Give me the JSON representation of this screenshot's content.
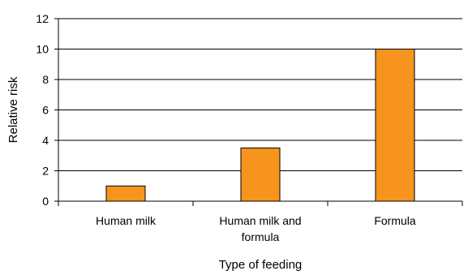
{
  "chart_data": {
    "type": "bar",
    "title": "",
    "xlabel": "Type of feeding",
    "ylabel": "Relative risk",
    "categories": [
      [
        "Human milk"
      ],
      [
        "Human milk and",
        "formula"
      ],
      [
        "Formula"
      ]
    ],
    "values": [
      1,
      3.5,
      10
    ],
    "ylim": [
      0,
      12
    ],
    "yticks": [
      0,
      2,
      4,
      6,
      8,
      10,
      12
    ],
    "grid": true,
    "legend": "none",
    "bar_color": "#F7941D",
    "bar_edge_color": "#000000"
  }
}
